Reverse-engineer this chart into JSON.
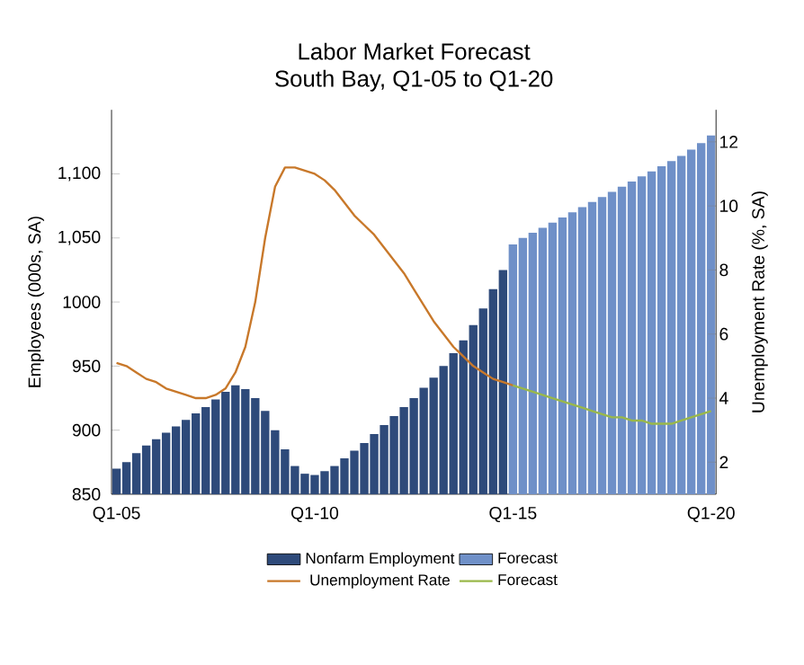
{
  "chart_data": {
    "type": "bar",
    "title": "Labor Market Forecast",
    "subtitle": "South Bay, Q1-05 to Q1-20",
    "ylabel": "Employees (000s, SA)",
    "y2label": "Unemployment Rate (%, SA)",
    "categories": [
      "Q1-05",
      null,
      null,
      null,
      null,
      null,
      null,
      null,
      null,
      null,
      null,
      null,
      null,
      null,
      null,
      null,
      null,
      null,
      null,
      null,
      "Q1-10",
      null,
      null,
      null,
      null,
      null,
      null,
      null,
      null,
      null,
      null,
      null,
      null,
      null,
      null,
      null,
      null,
      null,
      null,
      null,
      "Q1-15",
      null,
      null,
      null,
      null,
      null,
      null,
      null,
      null,
      null,
      null,
      null,
      null,
      null,
      null,
      null,
      null,
      null,
      null,
      null,
      "Q1-20"
    ],
    "series": [
      {
        "name": "Nonfarm Employment",
        "color": "#2e4a7a",
        "values": [
          870,
          875,
          882,
          888,
          893,
          898,
          903,
          908,
          913,
          918,
          924,
          930,
          935,
          932,
          925,
          915,
          900,
          885,
          872,
          866,
          865,
          868,
          872,
          878,
          884,
          890,
          897,
          904,
          911,
          918,
          925,
          933,
          941,
          950,
          960,
          970,
          982,
          995,
          1010,
          1025,
          null,
          null,
          null,
          null,
          null,
          null,
          null,
          null,
          null,
          null,
          null,
          null,
          null,
          null,
          null,
          null,
          null,
          null,
          null,
          null,
          null
        ]
      },
      {
        "name": "Forecast",
        "color": "#6f90c8",
        "values": [
          null,
          null,
          null,
          null,
          null,
          null,
          null,
          null,
          null,
          null,
          null,
          null,
          null,
          null,
          null,
          null,
          null,
          null,
          null,
          null,
          null,
          null,
          null,
          null,
          null,
          null,
          null,
          null,
          null,
          null,
          null,
          null,
          null,
          null,
          null,
          null,
          null,
          null,
          null,
          null,
          1045,
          1050,
          1054,
          1058,
          1062,
          1066,
          1070,
          1074,
          1078,
          1082,
          1086,
          1090,
          1094,
          1098,
          1102,
          1106,
          1110,
          1114,
          1119,
          1124,
          1130
        ]
      },
      {
        "name": "Unemployment Rate",
        "type": "line",
        "axis": "y2",
        "color": "#c8782a",
        "values": [
          5.1,
          5.0,
          4.8,
          4.6,
          4.5,
          4.3,
          4.2,
          4.1,
          4.0,
          4.0,
          4.1,
          4.3,
          4.8,
          5.6,
          7.0,
          9.0,
          10.6,
          11.2,
          11.2,
          11.1,
          11.0,
          10.8,
          10.5,
          10.1,
          9.7,
          9.4,
          9.1,
          8.7,
          8.3,
          7.9,
          7.4,
          6.9,
          6.4,
          6.0,
          5.6,
          5.3,
          5.0,
          4.8,
          4.6,
          4.5,
          4.4,
          null,
          null,
          null,
          null,
          null,
          null,
          null,
          null,
          null,
          null,
          null,
          null,
          null,
          null,
          null,
          null,
          null,
          null,
          null,
          null
        ]
      },
      {
        "name": "Forecast",
        "type": "line",
        "axis": "y2",
        "color": "#9ab84a",
        "values": [
          null,
          null,
          null,
          null,
          null,
          null,
          null,
          null,
          null,
          null,
          null,
          null,
          null,
          null,
          null,
          null,
          null,
          null,
          null,
          null,
          null,
          null,
          null,
          null,
          null,
          null,
          null,
          null,
          null,
          null,
          null,
          null,
          null,
          null,
          null,
          null,
          null,
          null,
          null,
          null,
          4.4,
          4.3,
          4.2,
          4.1,
          4.0,
          3.9,
          3.8,
          3.7,
          3.6,
          3.5,
          3.4,
          3.4,
          3.3,
          3.3,
          3.2,
          3.2,
          3.2,
          3.3,
          3.4,
          3.5,
          3.6
        ]
      }
    ],
    "ylim": [
      850,
      1150
    ],
    "yticks": [
      850,
      900,
      950,
      1000,
      {
        "value": 1050,
        "label": "1,050"
      },
      {
        "value": 1100,
        "label": "1,100"
      }
    ],
    "y2lim": [
      1,
      13
    ],
    "y2ticks": [
      2,
      4,
      6,
      8,
      10,
      12
    ],
    "legend": "bottom",
    "marker": "none",
    "line_style": "solid",
    "grid": false
  }
}
